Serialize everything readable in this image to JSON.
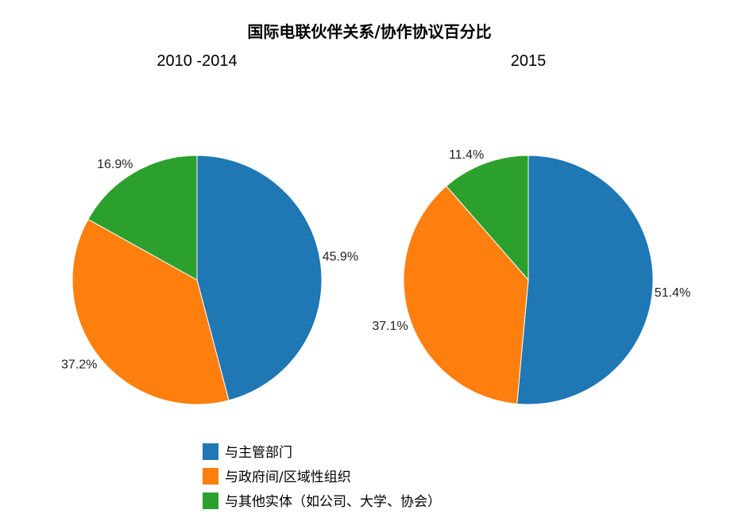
{
  "chart_data": {
    "type": "pie",
    "title": "国际电联伙伴关系/协作协议百分比",
    "categories": [
      "与主管部门",
      "与政府间/区域性组织",
      "与其他实体（如公司、大学、协会）"
    ],
    "colors": [
      "#1f77b4",
      "#ff7f0e",
      "#2ca02c"
    ],
    "legend_position": "bottom",
    "series": [
      {
        "name": "2010 -2014",
        "values": [
          45.9,
          37.2,
          16.9
        ],
        "data_labels": [
          "45.9%",
          "37.2%",
          "16.9%"
        ]
      },
      {
        "name": "2015",
        "values": [
          51.4,
          37.1,
          11.4
        ],
        "data_labels": [
          "51.4%",
          "37.1%",
          "11.4%"
        ]
      }
    ]
  }
}
